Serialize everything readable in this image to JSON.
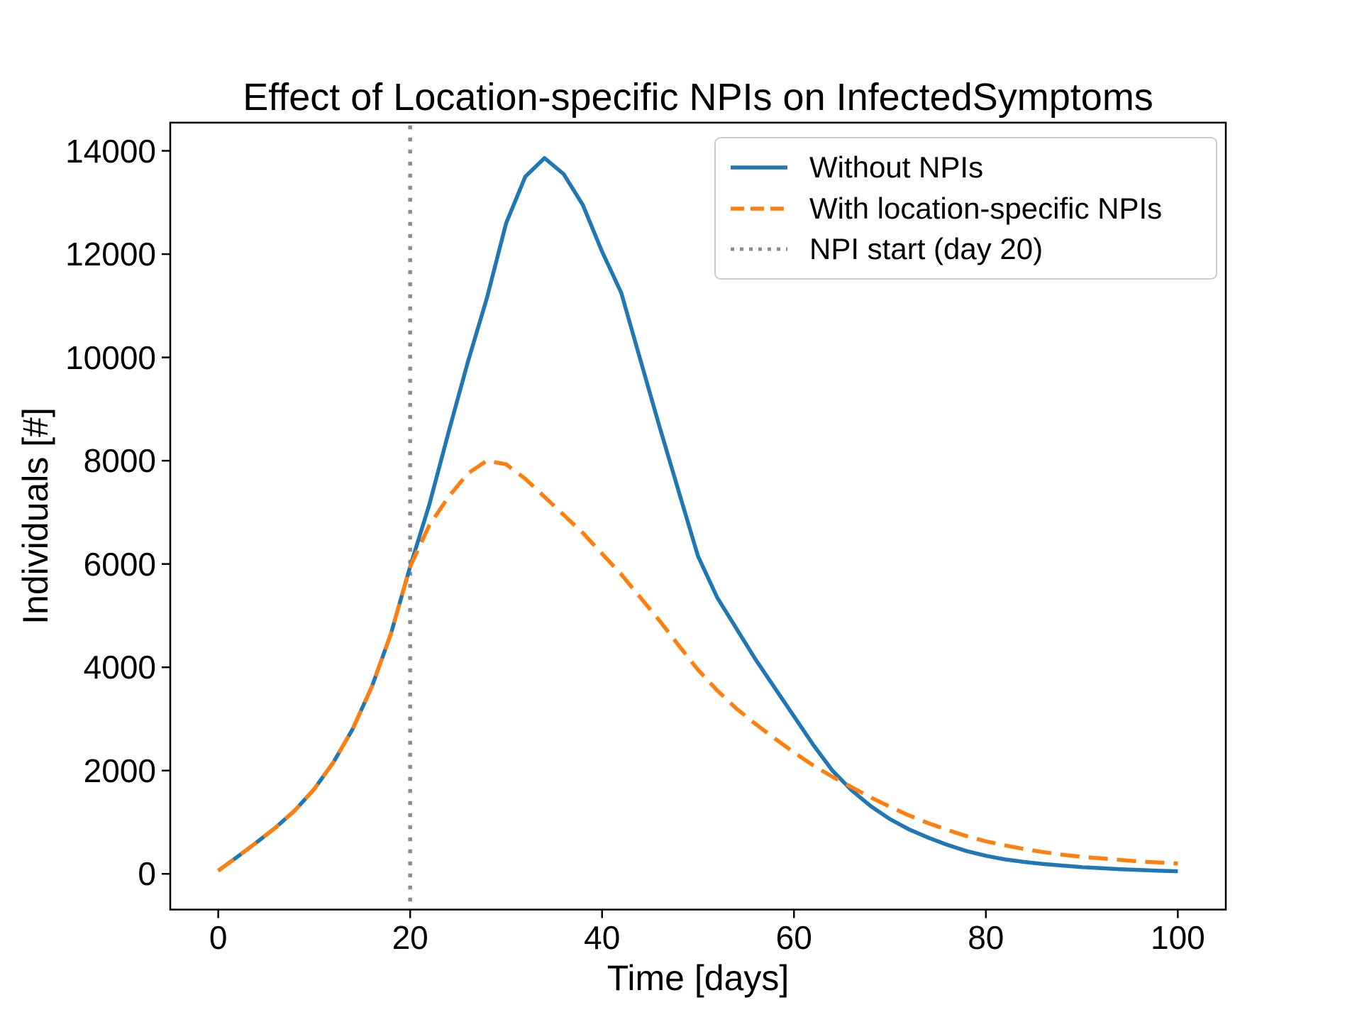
{
  "chart_data": {
    "type": "line",
    "title": "Effect of Location-specific NPIs on InfectedSymptoms",
    "xlabel": "Time [days]",
    "ylabel": "Individuals [#]",
    "xlim": [
      -5,
      105
    ],
    "ylim": [
      -692,
      14546
    ],
    "xticks": [
      0,
      20,
      40,
      60,
      80,
      100
    ],
    "yticks": [
      0,
      2000,
      4000,
      6000,
      8000,
      10000,
      12000,
      14000
    ],
    "grid": false,
    "legend_position": "upper right",
    "x": [
      0,
      2,
      4,
      6,
      8,
      10,
      12,
      14,
      16,
      18,
      20,
      22,
      24,
      26,
      28,
      30,
      32,
      34,
      36,
      38,
      40,
      42,
      44,
      46,
      48,
      50,
      52,
      54,
      56,
      58,
      60,
      62,
      64,
      66,
      68,
      70,
      72,
      74,
      76,
      78,
      80,
      82,
      84,
      86,
      88,
      90,
      92,
      94,
      96,
      98,
      100
    ],
    "series": [
      {
        "name": "Without NPIs",
        "color": "#1f77b4",
        "line_style": "solid",
        "values": [
          60,
          330,
          610,
          900,
          1230,
          1640,
          2160,
          2800,
          3620,
          4650,
          5950,
          7150,
          8550,
          9900,
          11150,
          12600,
          13500,
          13860,
          13550,
          12950,
          12050,
          11250,
          9950,
          8650,
          7400,
          6150,
          5350,
          4750,
          4150,
          3600,
          3050,
          2500,
          2000,
          1620,
          1310,
          1060,
          860,
          700,
          560,
          440,
          350,
          280,
          230,
          190,
          160,
          130,
          110,
          90,
          75,
          60,
          50
        ]
      },
      {
        "name": "With location-specific NPIs",
        "color": "#ff7f0e",
        "line_style": "dashed",
        "values": [
          60,
          330,
          610,
          900,
          1230,
          1640,
          2160,
          2800,
          3620,
          4650,
          5950,
          6750,
          7300,
          7750,
          8000,
          7930,
          7650,
          7300,
          6950,
          6600,
          6200,
          5800,
          5350,
          4900,
          4420,
          3950,
          3550,
          3200,
          2900,
          2620,
          2350,
          2100,
          1880,
          1680,
          1480,
          1300,
          1130,
          980,
          850,
          730,
          630,
          550,
          480,
          420,
          370,
          330,
          300,
          270,
          240,
          220,
          200
        ]
      }
    ],
    "vline": {
      "label": "NPI start (day 20)",
      "x": 20,
      "color": "#8c8c8c",
      "line_style": "dotted"
    },
    "annotations": {
      "peak_without_npis": 13860,
      "peak_with_npis": 8000
    }
  }
}
